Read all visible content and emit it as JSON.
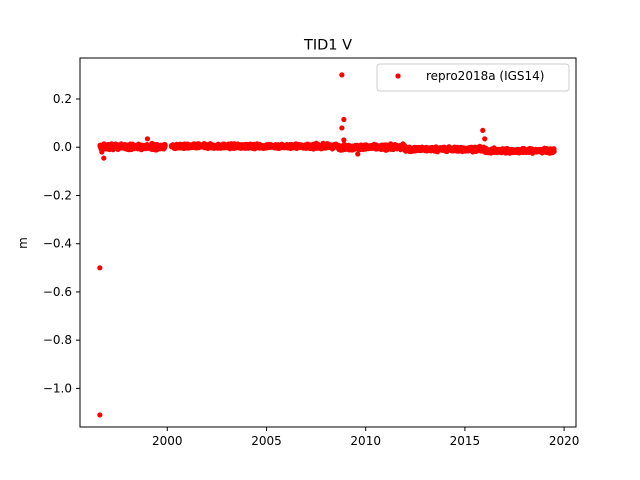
{
  "chart_data": {
    "type": "scatter",
    "title": "TID1 V",
    "xlabel": "",
    "ylabel": "m",
    "xlim": [
      1995.6,
      2020.6
    ],
    "ylim": [
      -1.16,
      0.37
    ],
    "xticks": [
      2000,
      2005,
      2010,
      2015,
      2020
    ],
    "yticks": [
      -1.0,
      -0.8,
      -0.6,
      -0.4,
      -0.2,
      0.0,
      0.2
    ],
    "ytick_labels": [
      "−1.0",
      "−0.8",
      "−0.6",
      "−0.4",
      "−0.2",
      "0.0",
      "0.2"
    ],
    "grid": false,
    "legend_position": "top-right",
    "series": [
      {
        "name": "repro2018a (IGS14)",
        "color": "#ff0000",
        "marker": "circle",
        "dense_segments": [
          {
            "x_start": 1996.6,
            "x_end": 1999.9,
            "y_mean": 0.002,
            "y_spread": 0.018
          },
          {
            "x_start": 2000.2,
            "x_end": 2008.6,
            "y_mean": 0.004,
            "y_spread": 0.015
          },
          {
            "x_start": 2008.6,
            "x_end": 2012.0,
            "y_mean": 0.0,
            "y_spread": 0.017
          },
          {
            "x_start": 2012.0,
            "x_end": 2016.0,
            "y_mean": -0.008,
            "y_spread": 0.015
          },
          {
            "x_start": 2016.0,
            "x_end": 2019.5,
            "y_mean": -0.015,
            "y_spread": 0.015
          }
        ],
        "outliers": [
          {
            "x": 1996.6,
            "y": -1.11
          },
          {
            "x": 1996.6,
            "y": -0.5
          },
          {
            "x": 1996.8,
            "y": -0.045
          },
          {
            "x": 1996.7,
            "y": -0.02
          },
          {
            "x": 1999.0,
            "y": 0.035
          },
          {
            "x": 2008.8,
            "y": 0.3
          },
          {
            "x": 2008.9,
            "y": 0.115
          },
          {
            "x": 2008.8,
            "y": 0.08
          },
          {
            "x": 2008.9,
            "y": 0.03
          },
          {
            "x": 2009.6,
            "y": -0.028
          },
          {
            "x": 2015.9,
            "y": 0.07
          },
          {
            "x": 2016.0,
            "y": 0.035
          }
        ]
      }
    ]
  }
}
